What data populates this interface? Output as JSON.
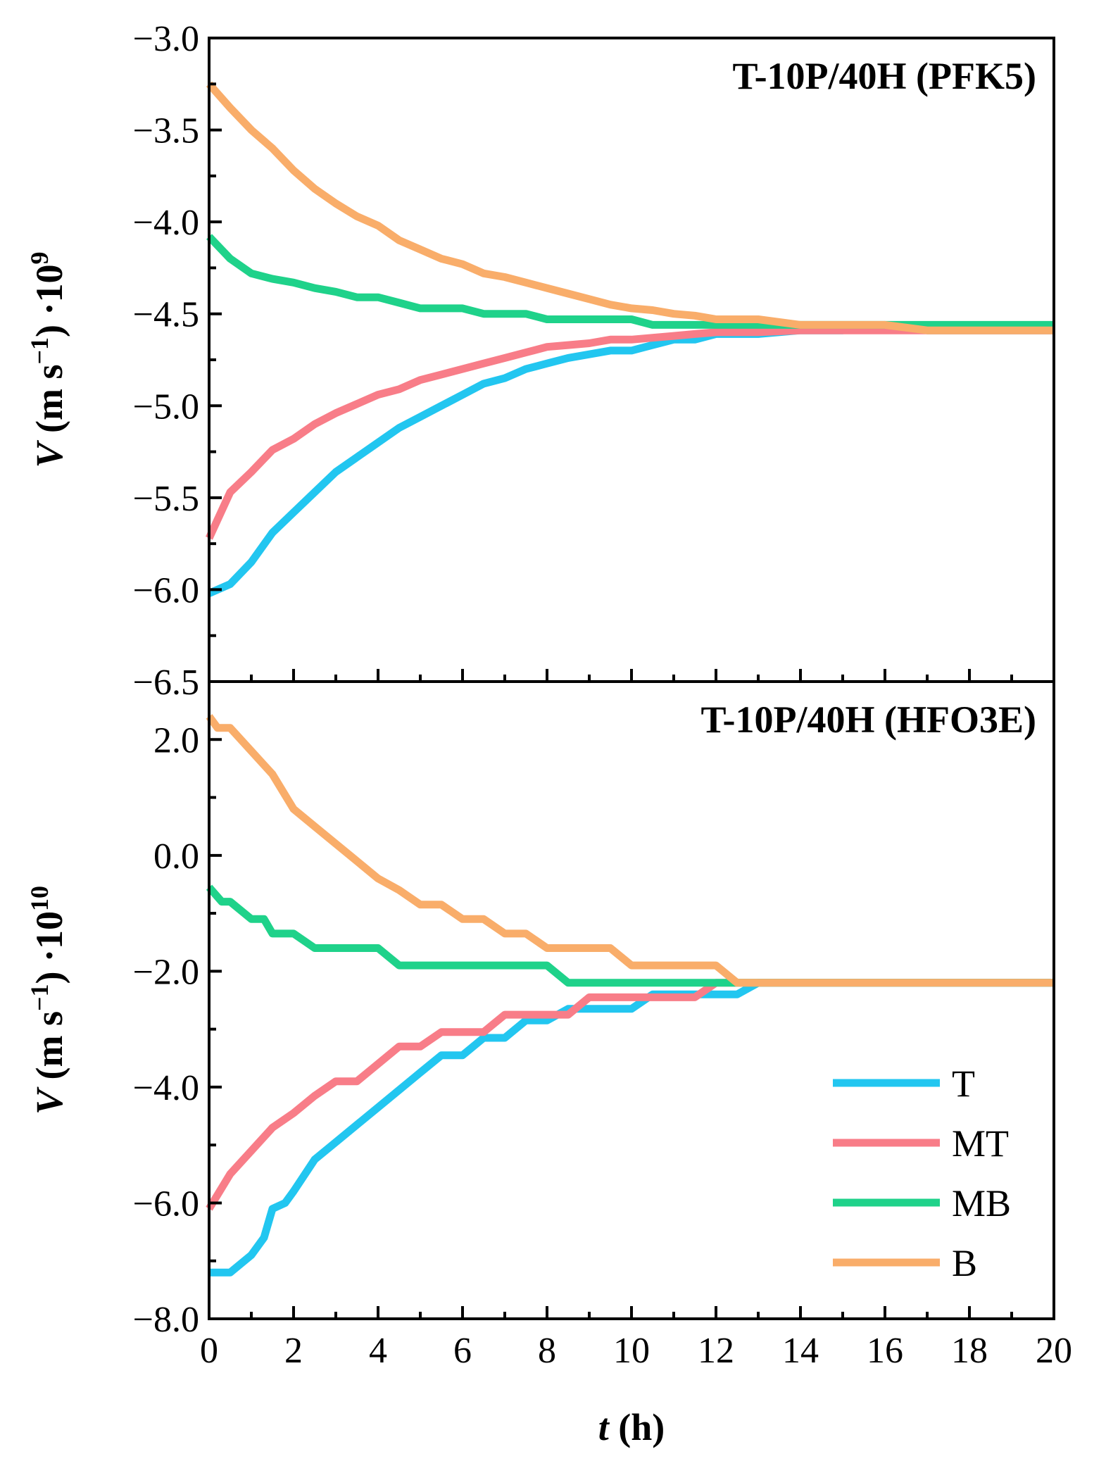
{
  "colors": {
    "T": "#22C6F0",
    "MT": "#F87D88",
    "MB": "#1FD28A",
    "B": "#F9AD6A"
  },
  "legend": {
    "labels": [
      "T",
      "MT",
      "MB",
      "B"
    ]
  },
  "xaxis": {
    "label_italic": "t",
    "label_rest": " (h)",
    "ticks": [
      "0",
      "2",
      "4",
      "6",
      "8",
      "10",
      "12",
      "14",
      "16",
      "18",
      "20"
    ]
  },
  "top_ylabel": {
    "italic": "V",
    "text": " (m s",
    "sup1": "−1",
    "close": ") ·10",
    "sup2": "9"
  },
  "bottom_ylabel": {
    "italic": "V",
    "text": " (m s",
    "sup1": "−1",
    "close": ") ·10",
    "sup2": "10"
  },
  "chart_data": [
    {
      "type": "line",
      "title": "T-10P/40H (PFK5)",
      "xlabel": "t (h)",
      "ylabel": "V (m s−1) ·10^9",
      "xlim": [
        0,
        20
      ],
      "ylim": [
        -6.5,
        -3.0
      ],
      "yticks": [
        "−3.0",
        "−3.5",
        "−4.0",
        "−4.5",
        "−5.0",
        "−5.5",
        "−6.0",
        "−6.5"
      ],
      "ytick_values": [
        -3.0,
        -3.5,
        -4.0,
        -4.5,
        -5.0,
        -5.5,
        -6.0,
        -6.5
      ],
      "series": [
        {
          "name": "T",
          "x": [
            0,
            0.5,
            1,
            1.5,
            2,
            2.5,
            3,
            3.5,
            4,
            4.5,
            5,
            5.5,
            6,
            6.5,
            7,
            7.5,
            8,
            8.5,
            9,
            9.5,
            10,
            10.5,
            11,
            11.5,
            12,
            13,
            14,
            15,
            16,
            17,
            18,
            19,
            20
          ],
          "y": [
            -6.02,
            -5.97,
            -5.85,
            -5.69,
            -5.58,
            -5.47,
            -5.36,
            -5.28,
            -5.2,
            -5.12,
            -5.06,
            -5.0,
            -4.94,
            -4.88,
            -4.85,
            -4.8,
            -4.77,
            -4.74,
            -4.72,
            -4.7,
            -4.7,
            -4.67,
            -4.64,
            -4.64,
            -4.61,
            -4.61,
            -4.59,
            -4.59,
            -4.56,
            -4.59,
            -4.59,
            -4.59,
            -4.59
          ]
        },
        {
          "name": "MT",
          "x": [
            0,
            0.5,
            1,
            1.5,
            2,
            2.5,
            3,
            3.5,
            4,
            4.5,
            5,
            5.5,
            6,
            6.5,
            7,
            7.5,
            8,
            8.5,
            9,
            9.5,
            10,
            10.5,
            11,
            11.5,
            12,
            13,
            14,
            15,
            16,
            17,
            18,
            19,
            20
          ],
          "y": [
            -5.72,
            -5.47,
            -5.36,
            -5.24,
            -5.18,
            -5.1,
            -5.04,
            -4.99,
            -4.94,
            -4.91,
            -4.86,
            -4.83,
            -4.8,
            -4.77,
            -4.74,
            -4.71,
            -4.68,
            -4.67,
            -4.66,
            -4.64,
            -4.64,
            -4.63,
            -4.62,
            -4.61,
            -4.6,
            -4.6,
            -4.59,
            -4.59,
            -4.59,
            -4.59,
            -4.59,
            -4.59,
            -4.59
          ]
        },
        {
          "name": "MB",
          "x": [
            0,
            0.5,
            1,
            1.5,
            2,
            2.5,
            3,
            3.5,
            4,
            4.5,
            5,
            5.5,
            6,
            6.5,
            7,
            7.5,
            8,
            8.5,
            9,
            9.5,
            10,
            10.5,
            11,
            11.5,
            12,
            13,
            14,
            15,
            16,
            17,
            18,
            19,
            20
          ],
          "y": [
            -4.08,
            -4.2,
            -4.28,
            -4.31,
            -4.33,
            -4.36,
            -4.38,
            -4.41,
            -4.41,
            -4.44,
            -4.47,
            -4.47,
            -4.47,
            -4.5,
            -4.5,
            -4.5,
            -4.53,
            -4.53,
            -4.53,
            -4.53,
            -4.53,
            -4.56,
            -4.56,
            -4.56,
            -4.56,
            -4.56,
            -4.56,
            -4.56,
            -4.56,
            -4.56,
            -4.56,
            -4.56,
            -4.56
          ]
        },
        {
          "name": "B",
          "x": [
            0,
            0.5,
            1,
            1.5,
            2,
            2.5,
            3,
            3.5,
            4,
            4.5,
            5,
            5.5,
            6,
            6.5,
            7,
            7.5,
            8,
            8.5,
            9,
            9.5,
            10,
            10.5,
            11,
            11.5,
            12,
            13,
            14,
            15,
            16,
            17,
            18,
            19,
            20
          ],
          "y": [
            -3.25,
            -3.38,
            -3.5,
            -3.6,
            -3.72,
            -3.82,
            -3.9,
            -3.97,
            -4.02,
            -4.1,
            -4.15,
            -4.2,
            -4.23,
            -4.28,
            -4.3,
            -4.33,
            -4.36,
            -4.39,
            -4.42,
            -4.45,
            -4.47,
            -4.48,
            -4.5,
            -4.51,
            -4.53,
            -4.53,
            -4.56,
            -4.56,
            -4.56,
            -4.59,
            -4.59,
            -4.59,
            -4.59
          ]
        }
      ]
    },
    {
      "type": "line",
      "title": "T-10P/40H (HFO3E)",
      "xlabel": "t (h)",
      "ylabel": "V (m s−1) ·10^10",
      "xlim": [
        0,
        20
      ],
      "ylim": [
        -8.0,
        3.0
      ],
      "yticks": [
        "2.0",
        "0.0",
        "−2.0",
        "−4.0",
        "−6.0",
        "−8.0"
      ],
      "ytick_values": [
        2.0,
        0.0,
        -2.0,
        -4.0,
        -6.0,
        -8.0
      ],
      "series": [
        {
          "name": "T",
          "x": [
            0,
            0.5,
            1,
            1.3,
            1.5,
            1.8,
            2,
            2.5,
            3,
            3.5,
            4,
            4.5,
            5,
            5.5,
            6,
            6.5,
            7,
            7.5,
            8,
            8.5,
            9,
            9.5,
            10,
            10.5,
            11,
            11.5,
            12,
            12.5,
            13,
            14,
            16,
            18,
            20
          ],
          "y": [
            -7.2,
            -7.2,
            -6.9,
            -6.6,
            -6.1,
            -6.0,
            -5.8,
            -5.25,
            -4.95,
            -4.65,
            -4.35,
            -4.05,
            -3.75,
            -3.45,
            -3.45,
            -3.15,
            -3.15,
            -2.85,
            -2.85,
            -2.65,
            -2.65,
            -2.65,
            -2.65,
            -2.4,
            -2.4,
            -2.4,
            -2.4,
            -2.4,
            -2.2,
            -2.2,
            -2.2,
            -2.2,
            -2.2
          ]
        },
        {
          "name": "MT",
          "x": [
            0,
            0.5,
            1,
            1.5,
            2,
            2.5,
            3,
            3.5,
            4,
            4.5,
            5,
            5.5,
            6,
            6.5,
            7,
            7.5,
            8,
            8.5,
            9,
            9.5,
            10,
            10.5,
            11,
            11.5,
            12,
            12.5,
            13,
            14,
            16,
            18,
            20
          ],
          "y": [
            -6.1,
            -5.5,
            -5.1,
            -4.7,
            -4.45,
            -4.15,
            -3.9,
            -3.9,
            -3.6,
            -3.3,
            -3.3,
            -3.05,
            -3.05,
            -3.05,
            -2.75,
            -2.75,
            -2.75,
            -2.75,
            -2.45,
            -2.45,
            -2.45,
            -2.45,
            -2.45,
            -2.45,
            -2.2,
            -2.2,
            -2.2,
            -2.2,
            -2.2,
            -2.2,
            -2.2
          ]
        },
        {
          "name": "MB",
          "x": [
            0,
            0.3,
            0.5,
            1,
            1.3,
            1.5,
            2,
            2.5,
            3,
            3.5,
            4,
            4.5,
            5,
            5.5,
            6,
            6.5,
            7,
            7.5,
            8,
            8.5,
            9,
            9.5,
            10,
            11,
            12,
            13,
            14,
            16,
            18,
            20
          ],
          "y": [
            -0.55,
            -0.8,
            -0.8,
            -1.1,
            -1.1,
            -1.35,
            -1.35,
            -1.6,
            -1.6,
            -1.6,
            -1.6,
            -1.9,
            -1.9,
            -1.9,
            -1.9,
            -1.9,
            -1.9,
            -1.9,
            -1.9,
            -2.2,
            -2.2,
            -2.2,
            -2.2,
            -2.2,
            -2.2,
            -2.2,
            -2.2,
            -2.2,
            -2.2,
            -2.2
          ]
        },
        {
          "name": "B",
          "x": [
            0,
            0.2,
            0.5,
            1,
            1.5,
            2,
            2.5,
            3,
            3.5,
            4,
            4.5,
            5,
            5.5,
            6,
            6.5,
            7,
            7.5,
            8,
            8.5,
            9,
            9.5,
            10,
            10.5,
            11,
            11.5,
            12,
            12.5,
            13,
            14,
            16,
            18,
            20
          ],
          "y": [
            2.4,
            2.2,
            2.2,
            1.8,
            1.4,
            0.8,
            0.5,
            0.2,
            -0.1,
            -0.4,
            -0.6,
            -0.85,
            -0.85,
            -1.1,
            -1.1,
            -1.35,
            -1.35,
            -1.6,
            -1.6,
            -1.6,
            -1.6,
            -1.9,
            -1.9,
            -1.9,
            -1.9,
            -1.9,
            -2.2,
            -2.2,
            -2.2,
            -2.2,
            -2.2,
            -2.2
          ]
        }
      ]
    }
  ]
}
